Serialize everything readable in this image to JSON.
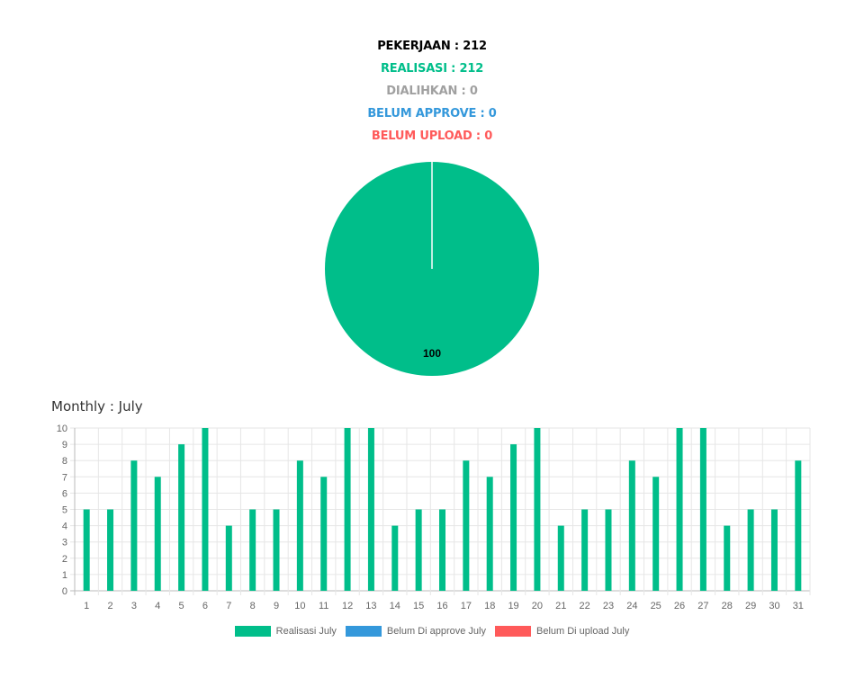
{
  "summary": {
    "pekerjaan": "PEKERJAAN : 212",
    "realisasi": "REALISASI : 212",
    "dialihkan": "DIALIHKAN : 0",
    "belum_approve": "BELUM APPROVE : 0",
    "belum_upload": "BELUM UPLOAD : 0"
  },
  "colors": {
    "realisasi": "#00be8a",
    "dialihkan": "#a0a0a0",
    "belum_approve": "#3498db",
    "belum_upload": "#ff5a5a",
    "pekerjaan": "#000000"
  },
  "monthly_title": "Monthly : July",
  "chart_data": [
    {
      "type": "pie",
      "slices": [
        {
          "name": "Realisasi",
          "value": 100,
          "color": "#00be8a"
        },
        {
          "name": "Dialihkan",
          "value": 0,
          "color": "#a0a0a0"
        },
        {
          "name": "Belum Approve",
          "value": 0,
          "color": "#3498db"
        },
        {
          "name": "Belum Upload",
          "value": 0,
          "color": "#ff5a5a"
        }
      ],
      "data_labels": [
        "100"
      ]
    },
    {
      "type": "bar",
      "categories": [
        "1",
        "2",
        "3",
        "4",
        "5",
        "6",
        "7",
        "8",
        "9",
        "10",
        "11",
        "12",
        "13",
        "14",
        "15",
        "16",
        "17",
        "18",
        "19",
        "20",
        "21",
        "22",
        "23",
        "24",
        "25",
        "26",
        "27",
        "28",
        "29",
        "30",
        "31"
      ],
      "series": [
        {
          "name": "Realisasi July",
          "color": "#00be8a",
          "values": [
            5,
            5,
            8,
            7,
            9,
            10,
            4,
            5,
            5,
            8,
            7,
            10,
            10,
            4,
            5,
            5,
            8,
            7,
            9,
            10,
            4,
            5,
            5,
            8,
            7,
            10,
            10,
            4,
            5,
            5,
            8
          ]
        },
        {
          "name": "Belum Di approve July",
          "color": "#3498db",
          "values": [
            0,
            0,
            0,
            0,
            0,
            0,
            0,
            0,
            0,
            0,
            0,
            0,
            0,
            0,
            0,
            0,
            0,
            0,
            0,
            0,
            0,
            0,
            0,
            0,
            0,
            0,
            0,
            0,
            0,
            0,
            0
          ]
        },
        {
          "name": "Belum Di upload July",
          "color": "#ff5a5a",
          "values": [
            0,
            0,
            0,
            0,
            0,
            0,
            0,
            0,
            0,
            0,
            0,
            0,
            0,
            0,
            0,
            0,
            0,
            0,
            0,
            0,
            0,
            0,
            0,
            0,
            0,
            0,
            0,
            0,
            0,
            0,
            0
          ]
        }
      ],
      "yticks": [
        "0",
        "1",
        "2",
        "3",
        "4",
        "5",
        "6",
        "7",
        "8",
        "9",
        "10"
      ],
      "ylim": [
        0,
        10
      ],
      "grid": true,
      "legend_position": "bottom"
    }
  ]
}
